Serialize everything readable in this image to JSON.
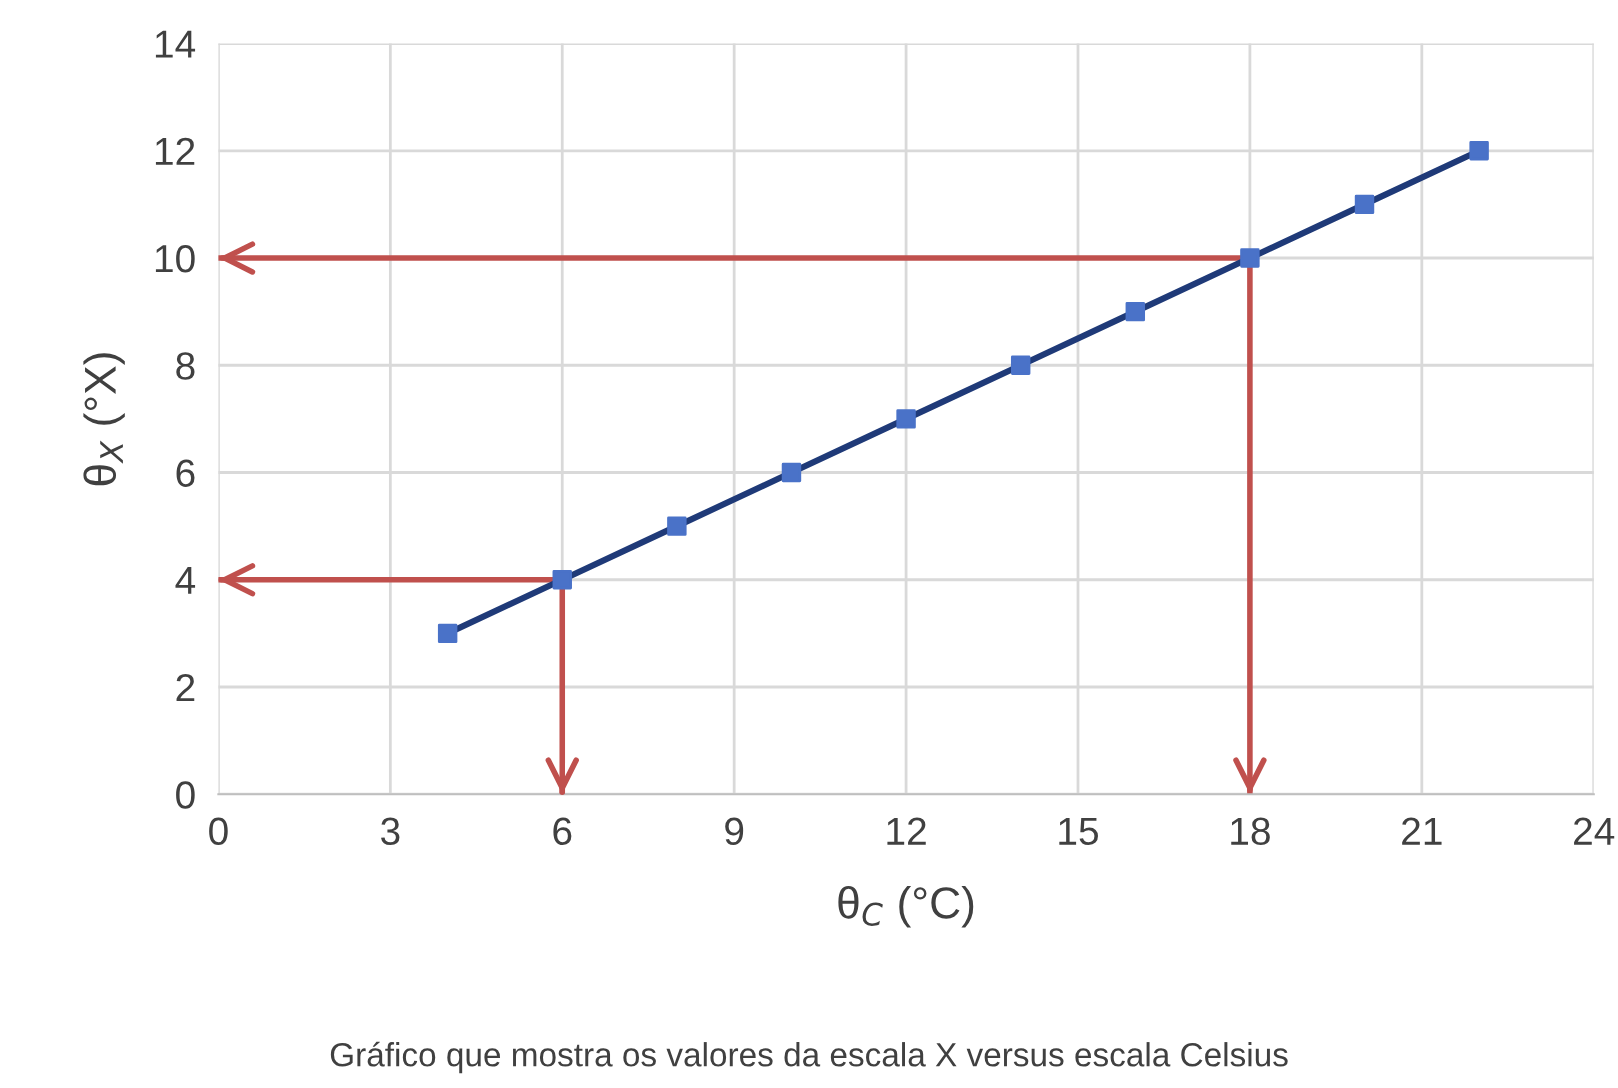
{
  "chart_data": {
    "type": "line",
    "xlabel": "θ$_{C}$ (°C)",
    "ylabel": "θ$_{X}$ (°X)",
    "annotations": [
      "Gráfico que mostra os valores da escala X versus escala Celsius"
    ],
    "x": [
      4,
      6,
      8,
      10,
      12,
      14,
      16,
      18,
      20,
      22
    ],
    "series": [
      {
        "color": "#1f3a78",
        "colors": [
          "#4a72c8",
          "#4a72c8",
          "#4a72c8",
          "#4a72c8",
          "#4a72c8",
          "#4a72c8",
          "#4a72c8",
          "#4a72c8",
          "#4a72c8",
          "#4a72c8"
        ],
        "values": [
          3,
          4,
          5,
          6,
          7,
          8,
          9,
          10,
          11,
          12
        ]
      },
      {
        "type": "line",
        "color": "#c0504d",
        "marker": "none",
        "x": [
          0,
          6,
          6
        ],
        "values": [
          4,
          4,
          0
        ]
      },
      {
        "type": "line",
        "color": "#c0504d",
        "marker": "none",
        "x": [
          0,
          18,
          18
        ],
        "values": [
          10,
          10,
          0
        ]
      }
    ],
    "marker": "square",
    "xlim": [
      0,
      24
    ],
    "xticks": [
      0,
      3,
      6,
      9,
      12,
      15,
      18,
      21,
      24
    ],
    "ylim": [
      0,
      14
    ],
    "yticks": [
      0,
      2,
      4,
      6,
      8,
      10,
      12,
      14
    ],
    "grid": true
  }
}
